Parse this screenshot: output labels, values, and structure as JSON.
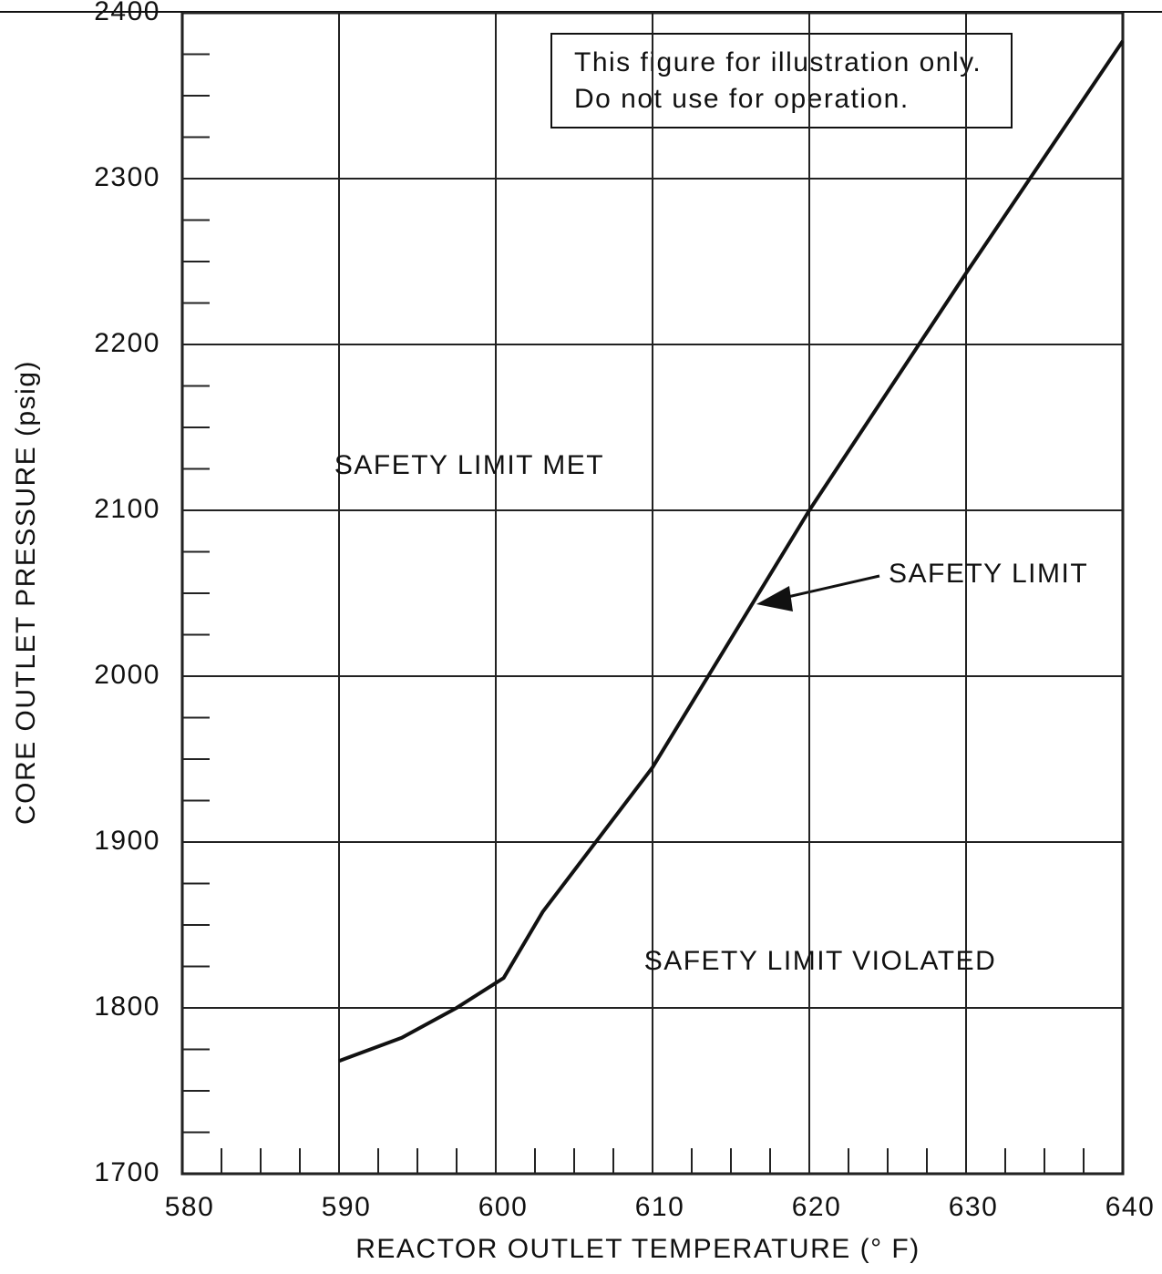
{
  "chart_data": {
    "type": "line",
    "x_label": "REACTOR OUTLET TEMPERATURE (° F)",
    "y_label": "CORE OUTLET PRESSURE (psig)",
    "x": [
      590,
      594,
      597.5,
      600.5,
      603,
      610,
      620,
      630,
      640
    ],
    "values": [
      1768,
      1782,
      1800,
      1818,
      1858,
      1945,
      2100,
      2243,
      2383
    ],
    "color": "#111111",
    "xlim": [
      580,
      640
    ],
    "ylim": [
      1700,
      2400
    ],
    "xticks": [
      580,
      590,
      600,
      610,
      620,
      630,
      640
    ],
    "yticks": [
      1700,
      1800,
      1900,
      2000,
      2100,
      2200,
      2300,
      2400
    ],
    "xminorticks": [
      582.5,
      585,
      587.5,
      592.5,
      595,
      597.5,
      602.5,
      605,
      607.5,
      612.5,
      615,
      617.5,
      622.5,
      625,
      627.5,
      632.5,
      635,
      637.5
    ],
    "yminorticks": [
      1725,
      1750,
      1775,
      1825,
      1850,
      1875,
      1925,
      1950,
      1975,
      2025,
      2050,
      2075,
      2125,
      2150,
      2175,
      2225,
      2250,
      2275,
      2325,
      2350,
      2375
    ],
    "grid": true,
    "note": [
      "This figure for illustration only.",
      "Do not use for operation."
    ],
    "annotations": [
      "SAFETY LIMIT MET",
      "SAFETY LIMIT",
      "SAFETY LIMIT VIOLATED"
    ]
  }
}
